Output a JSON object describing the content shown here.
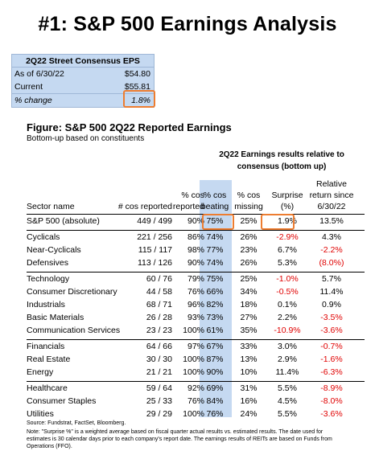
{
  "title": "#1: S&P 500 Earnings Analysis",
  "consensus": {
    "header": "2Q22 Street Consensus EPS",
    "rows": [
      {
        "label": "As of  6/30/22",
        "value": "$54.80"
      },
      {
        "label": "Current",
        "value": "$55.81"
      },
      {
        "label": "% change",
        "value": "1.8%"
      }
    ]
  },
  "figure": {
    "title": "Figure: S&P 500 2Q22 Reported Earnings",
    "subtitle": "Bottom-up based on constituents",
    "group_header": "2Q22 Earnings results relative to consensus (bottom up)"
  },
  "table": {
    "headers": {
      "sector": "Sector name",
      "reported": "# cos reported",
      "pct_reported": "% cos reported",
      "beating": "% cos beating",
      "missing": "% cos missing",
      "surprise": "Surprise (%)",
      "relative": "Relative return since 6/30/22"
    },
    "groups": [
      [
        {
          "sector": "S&P 500 (absolute)",
          "reported": "449 / 499",
          "pct": "90%",
          "beat": "75%",
          "miss": "25%",
          "surprise": "1.9%",
          "rel": "13.5%",
          "surprise_neg": false,
          "rel_neg": false
        }
      ],
      [
        {
          "sector": "Cyclicals",
          "reported": "221 / 256",
          "pct": "86%",
          "beat": "74%",
          "miss": "26%",
          "surprise": "-2.9%",
          "rel": "4.3%",
          "surprise_neg": true,
          "rel_neg": false
        },
        {
          "sector": "Near-Cyclicals",
          "reported": "115 / 117",
          "pct": "98%",
          "beat": "77%",
          "miss": "23%",
          "surprise": "6.7%",
          "rel": "-2.2%",
          "surprise_neg": false,
          "rel_neg": true
        },
        {
          "sector": "Defensives",
          "reported": "113 / 126",
          "pct": "90%",
          "beat": "74%",
          "miss": "26%",
          "surprise": "5.3%",
          "rel": "(8.0%)",
          "surprise_neg": false,
          "rel_neg": true
        }
      ],
      [
        {
          "sector": "Technology",
          "reported": "60 / 76",
          "pct": "79%",
          "beat": "75%",
          "miss": "25%",
          "surprise": "-1.0%",
          "rel": "5.7%",
          "surprise_neg": true,
          "rel_neg": false
        },
        {
          "sector": "Consumer Discretionary",
          "reported": "44 / 58",
          "pct": "76%",
          "beat": "66%",
          "miss": "34%",
          "surprise": "-0.5%",
          "rel": "11.4%",
          "surprise_neg": true,
          "rel_neg": false
        },
        {
          "sector": "Industrials",
          "reported": "68 / 71",
          "pct": "96%",
          "beat": "82%",
          "miss": "18%",
          "surprise": "0.1%",
          "rel": "0.9%",
          "surprise_neg": false,
          "rel_neg": false
        },
        {
          "sector": "Basic Materials",
          "reported": "26 / 28",
          "pct": "93%",
          "beat": "73%",
          "miss": "27%",
          "surprise": "2.2%",
          "rel": "-3.5%",
          "surprise_neg": false,
          "rel_neg": true
        },
        {
          "sector": "Communication Services",
          "reported": "23 / 23",
          "pct": "100%",
          "beat": "61%",
          "miss": "35%",
          "surprise": "-10.9%",
          "rel": "-3.6%",
          "surprise_neg": true,
          "rel_neg": true
        }
      ],
      [
        {
          "sector": "Financials",
          "reported": "64 / 66",
          "pct": "97%",
          "beat": "67%",
          "miss": "33%",
          "surprise": "3.0%",
          "rel": "-0.7%",
          "surprise_neg": false,
          "rel_neg": true
        },
        {
          "sector": "Real Estate",
          "reported": "30 / 30",
          "pct": "100%",
          "beat": "87%",
          "miss": "13%",
          "surprise": "2.9%",
          "rel": "-1.6%",
          "surprise_neg": false,
          "rel_neg": true
        },
        {
          "sector": "Energy",
          "reported": "21 / 21",
          "pct": "100%",
          "beat": "90%",
          "miss": "10%",
          "surprise": "11.4%",
          "rel": "-6.3%",
          "surprise_neg": false,
          "rel_neg": true
        }
      ],
      [
        {
          "sector": "Healthcare",
          "reported": "59 / 64",
          "pct": "92%",
          "beat": "69%",
          "miss": "31%",
          "surprise": "5.5%",
          "rel": "-8.9%",
          "surprise_neg": false,
          "rel_neg": true
        },
        {
          "sector": "Consumer Staples",
          "reported": "25 / 33",
          "pct": "76%",
          "beat": "84%",
          "miss": "16%",
          "surprise": "4.5%",
          "rel": "-8.0%",
          "surprise_neg": false,
          "rel_neg": true
        },
        {
          "sector": "Utilities",
          "reported": "29 / 29",
          "pct": "100%",
          "beat": "76%",
          "miss": "24%",
          "surprise": "5.5%",
          "rel": "-3.6%",
          "surprise_neg": false,
          "rel_neg": true
        }
      ]
    ]
  },
  "footnotes": {
    "source": "Source: Fundstrat, FactSet, Bloomberg.",
    "note": "Note: \"Surprise %\" is a weighted average based on fiscal quarter actual results vs. estimated results. The date used for estimates is 30 calendar days prior to each company's report date. The earnings results of REITs are based on Funds from Operations (FFO)."
  },
  "colors": {
    "highlight_blue": "#c5d9f1",
    "callout_orange": "#ed7d31",
    "negative_red": "#e00000"
  }
}
